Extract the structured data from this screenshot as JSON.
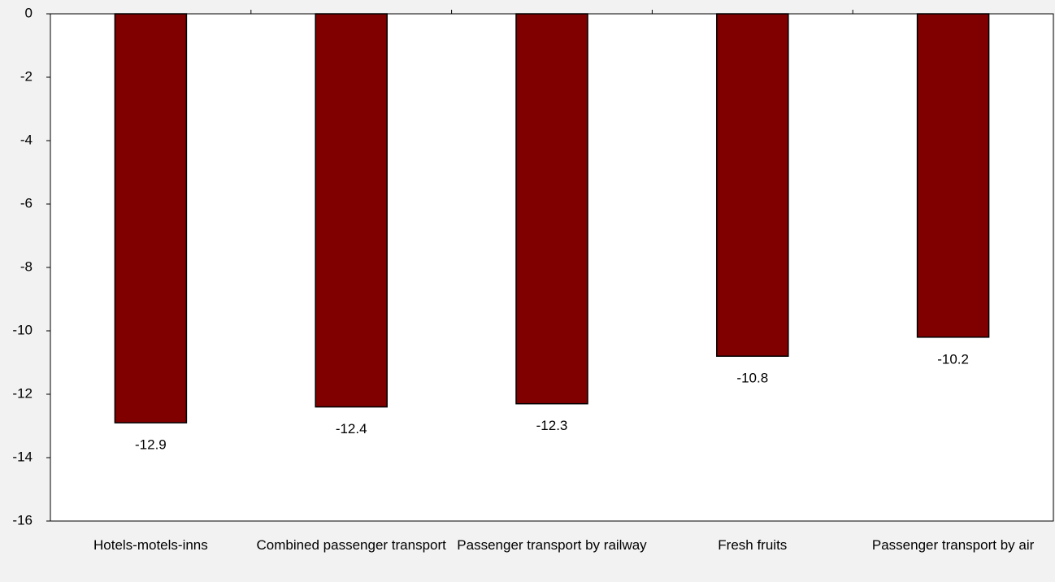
{
  "chart_data": {
    "type": "bar",
    "categories": [
      "Hotels-motels-inns",
      "Combined passenger transport",
      "Passenger transport by railway",
      "Fresh fruits",
      "Passenger transport by air"
    ],
    "values": [
      -12.9,
      -12.4,
      -12.3,
      -10.8,
      -10.2
    ],
    "color": "#800000",
    "ylim": [
      -16,
      0
    ],
    "yticks": [
      0,
      -2,
      -4,
      -6,
      -8,
      -10,
      -12,
      -14,
      -16
    ],
    "grid": false
  }
}
